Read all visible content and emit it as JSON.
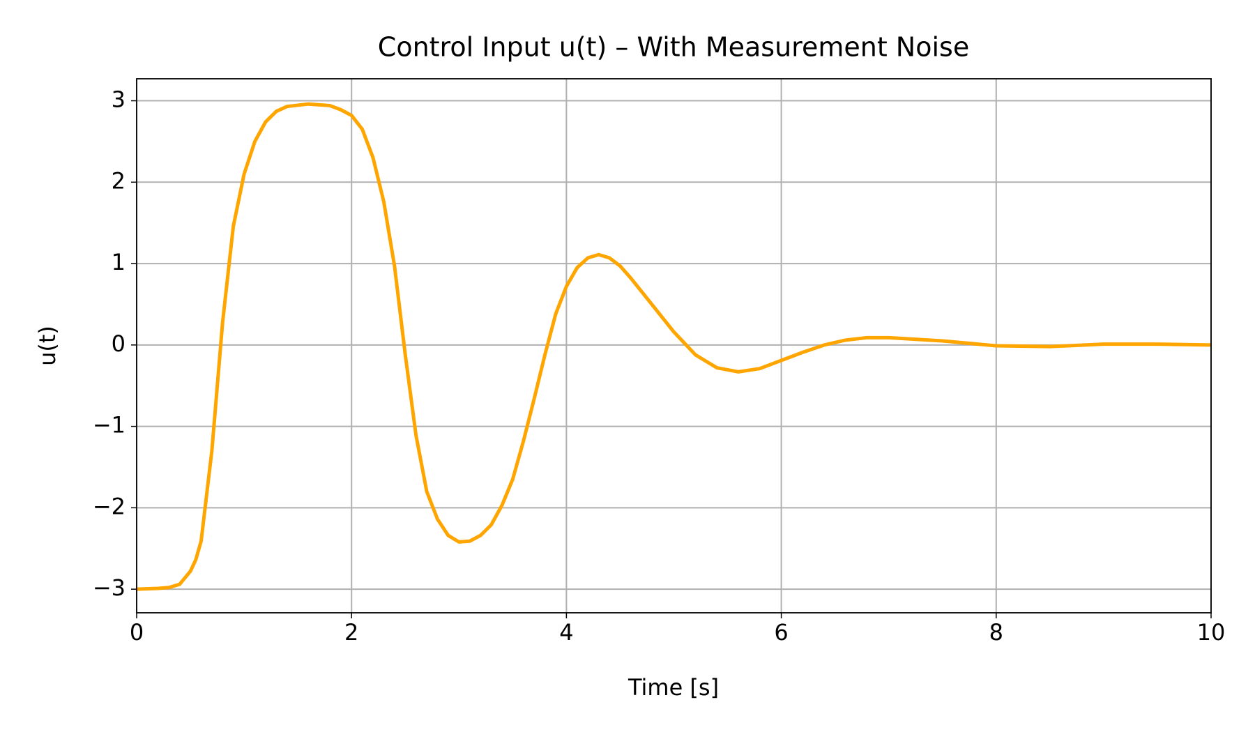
{
  "chart_data": {
    "type": "line",
    "title": "Control Input u(t) – With Measurement Noise",
    "xlabel": "Time [s]",
    "ylabel": "u(t)",
    "x": [
      0,
      0.2,
      0.3,
      0.4,
      0.5,
      0.55,
      0.6,
      0.7,
      0.8,
      0.9,
      1.0,
      1.1,
      1.2,
      1.3,
      1.4,
      1.6,
      1.8,
      1.9,
      2.0,
      2.1,
      2.2,
      2.3,
      2.4,
      2.5,
      2.6,
      2.7,
      2.8,
      2.9,
      3.0,
      3.1,
      3.2,
      3.3,
      3.4,
      3.5,
      3.6,
      3.7,
      3.8,
      3.9,
      4.0,
      4.1,
      4.2,
      4.3,
      4.4,
      4.5,
      4.6,
      4.8,
      5.0,
      5.2,
      5.4,
      5.6,
      5.8,
      6.0,
      6.2,
      6.4,
      6.6,
      6.8,
      7.0,
      7.5,
      8.0,
      8.5,
      9.0,
      9.5,
      10
    ],
    "series": [
      {
        "name": "u(t)",
        "color": "#ffa500",
        "values": [
          -3.0,
          -2.99,
          -2.98,
          -2.94,
          -2.78,
          -2.64,
          -2.41,
          -1.3,
          0.28,
          1.46,
          2.1,
          2.5,
          2.74,
          2.87,
          2.93,
          2.96,
          2.94,
          2.89,
          2.82,
          2.65,
          2.3,
          1.76,
          0.97,
          -0.12,
          -1.11,
          -1.8,
          -2.14,
          -2.34,
          -2.42,
          -2.41,
          -2.34,
          -2.21,
          -1.97,
          -1.65,
          -1.18,
          -0.66,
          -0.12,
          0.38,
          0.72,
          0.95,
          1.07,
          1.11,
          1.07,
          0.97,
          0.82,
          0.49,
          0.16,
          -0.12,
          -0.28,
          -0.33,
          -0.29,
          -0.19,
          -0.09,
          0.0,
          0.06,
          0.09,
          0.09,
          0.05,
          -0.01,
          -0.02,
          0.01,
          0.01,
          0.0
        ]
      }
    ],
    "xlim": [
      0,
      10
    ],
    "xticks": [
      0,
      2,
      4,
      6,
      8,
      10
    ],
    "ylim": [
      -3.29,
      3.27
    ],
    "yticks": [
      {
        "value": -3,
        "label": "−3"
      },
      {
        "value": -2,
        "label": "−2"
      },
      {
        "value": -1,
        "label": "−1"
      },
      0,
      1,
      2,
      3
    ],
    "grid": true
  }
}
